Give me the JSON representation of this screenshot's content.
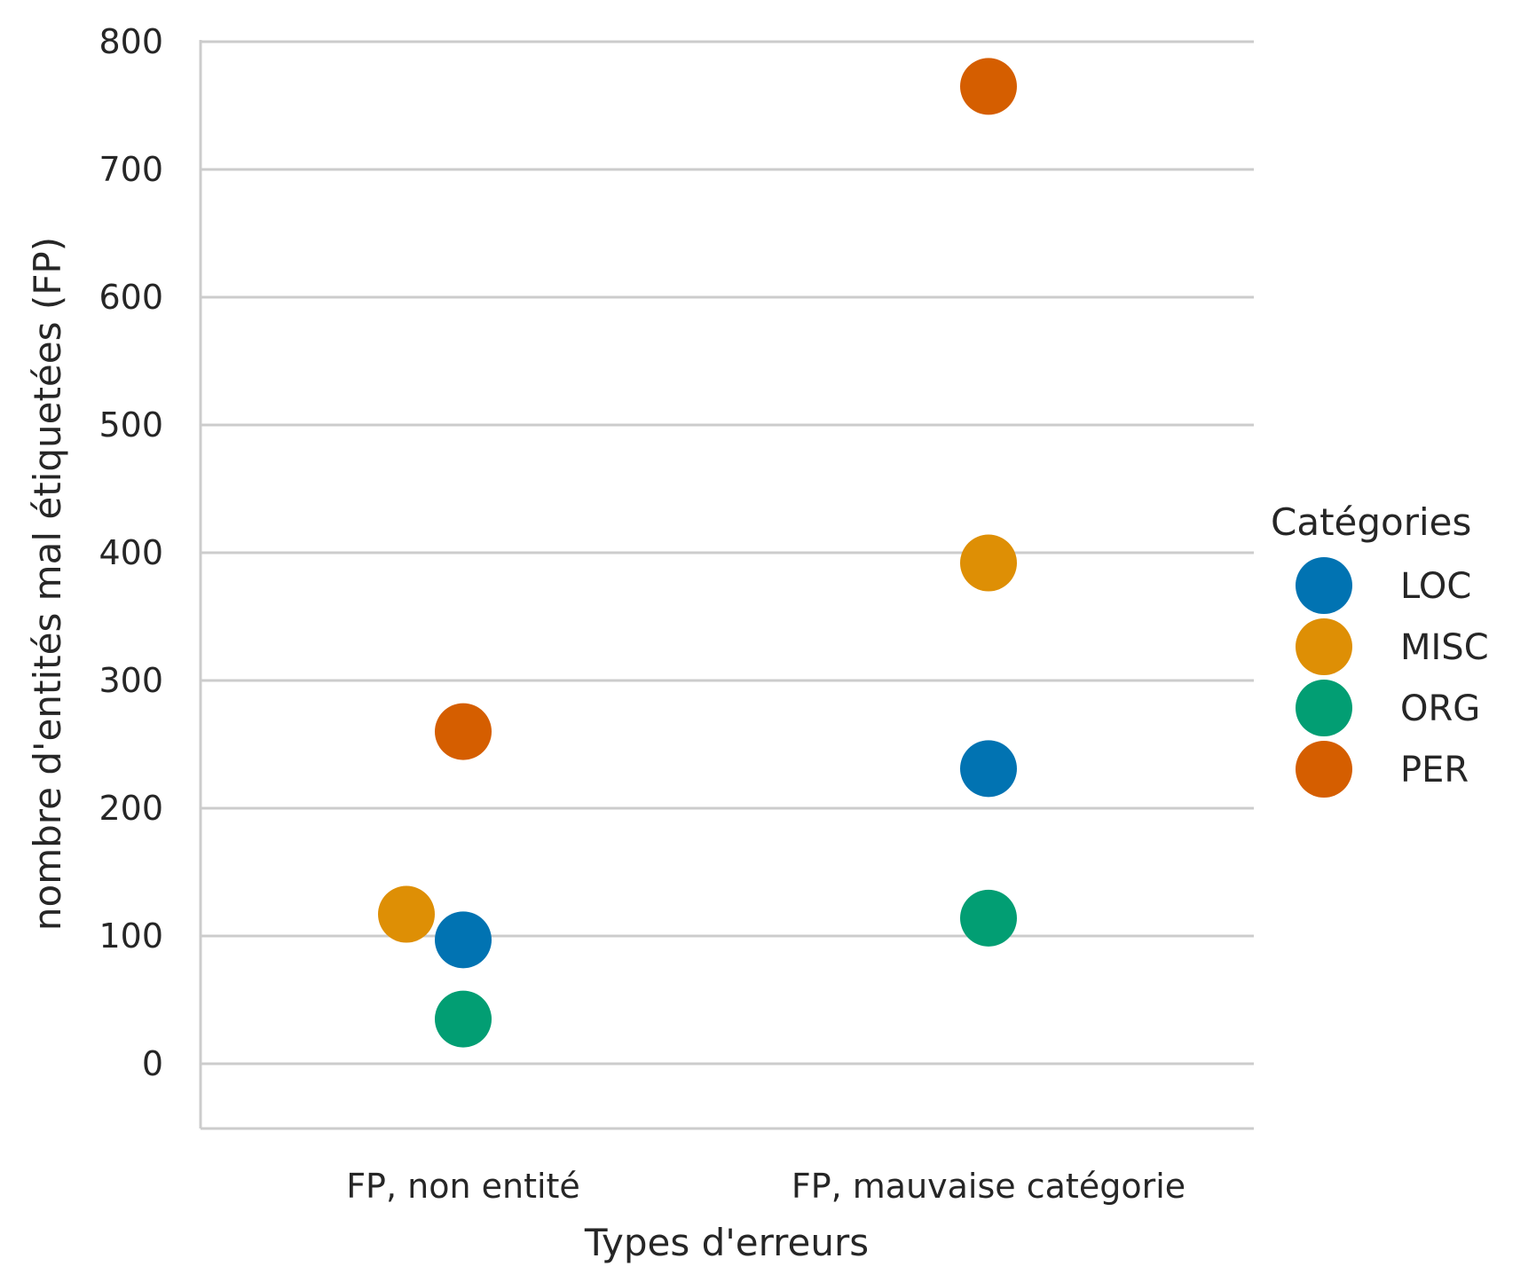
{
  "chart_data": {
    "type": "scatter",
    "title": "",
    "xlabel": "Types d'erreurs",
    "ylabel": "nombre d'entités mal étiquetées (FP)",
    "categories": [
      "FP, non entité",
      "FP, mauvaise catégorie"
    ],
    "ylim": [
      -50,
      800
    ],
    "yticks": [
      0,
      100,
      200,
      300,
      400,
      500,
      600,
      700,
      800
    ],
    "grid": "horizontal",
    "legend": {
      "title": "Catégories",
      "placement": "right"
    },
    "series": [
      {
        "name": "LOC",
        "color": "#0173b2",
        "values": [
          97,
          231
        ]
      },
      {
        "name": "MISC",
        "color": "#de8f05",
        "values": [
          117,
          392
        ]
      },
      {
        "name": "ORG",
        "color": "#029e73",
        "values": [
          35,
          114
        ]
      },
      {
        "name": "PER",
        "color": "#d55e00",
        "values": [
          260,
          765
        ]
      }
    ]
  }
}
